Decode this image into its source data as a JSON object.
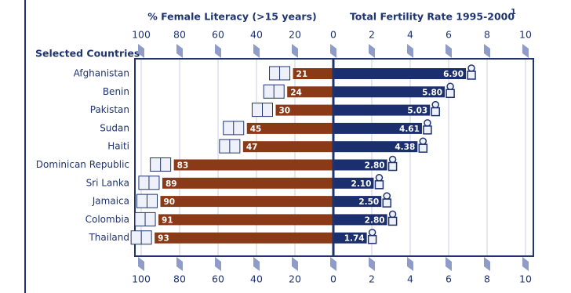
{
  "chart_data": {
    "type": "butterfly",
    "category_label": "Selected Countries",
    "categories": [
      "Afghanistan",
      "Benin",
      "Pakistan",
      "Sudan",
      "Haiti",
      "Dominican Republic",
      "Sri Lanka",
      "Jamaica",
      "Colombia",
      "Thailand"
    ],
    "panels": [
      {
        "title": "% Female Literacy (>15 years)",
        "color": "#8b3a17",
        "values": [
          21,
          24,
          30,
          45,
          47,
          83,
          89,
          90,
          91,
          93
        ],
        "xlim": [
          100,
          0
        ],
        "xticks": [
          100,
          80,
          60,
          40,
          20
        ]
      },
      {
        "title": "Total Fertility Rate 1995-2000",
        "title_note": "1",
        "color": "#1b2f6e",
        "values": [
          6.9,
          5.8,
          5.03,
          4.61,
          4.38,
          2.8,
          2.1,
          2.5,
          2.8,
          1.74
        ],
        "value_labels": [
          "6.90",
          "5.80",
          "5.03",
          "4.61",
          "4.38",
          "2.80",
          "2.10",
          "2.50",
          "2.80",
          "1.74"
        ],
        "xlim": [
          0,
          10
        ],
        "xticks": [
          0,
          2,
          4,
          6,
          8,
          10
        ]
      }
    ],
    "grid": true
  }
}
